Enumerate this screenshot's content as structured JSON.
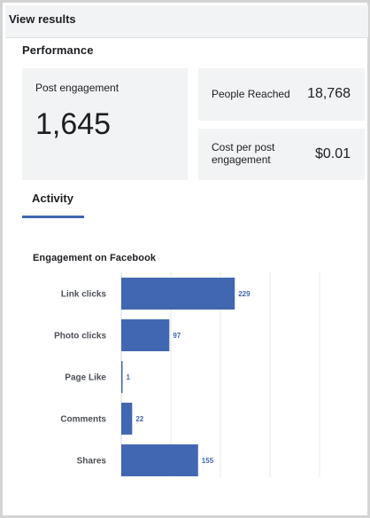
{
  "header": {
    "title": "View results"
  },
  "performance": {
    "title": "Performance",
    "post_engagement": {
      "label": "Post engagement",
      "value": "1,645"
    },
    "people_reached": {
      "label": "People Reached",
      "value": "18,768"
    },
    "cost_per_engagement": {
      "label": "Cost per post engagement",
      "value": "$0.01"
    }
  },
  "tabs": [
    {
      "label": "Activity",
      "active": true
    }
  ],
  "colors": {
    "bar": "#4267b2",
    "accent": "#4267b2",
    "card_bg": "#f2f3f5"
  },
  "chart_data": {
    "type": "bar",
    "orientation": "horizontal",
    "title": "Engagement on Facebook",
    "categories": [
      "Link clicks",
      "Photo clicks",
      "Page Like",
      "Comments",
      "Shares"
    ],
    "values": [
      229,
      97,
      1,
      22,
      155
    ],
    "xlim": [
      0,
      400
    ],
    "grid": true
  }
}
